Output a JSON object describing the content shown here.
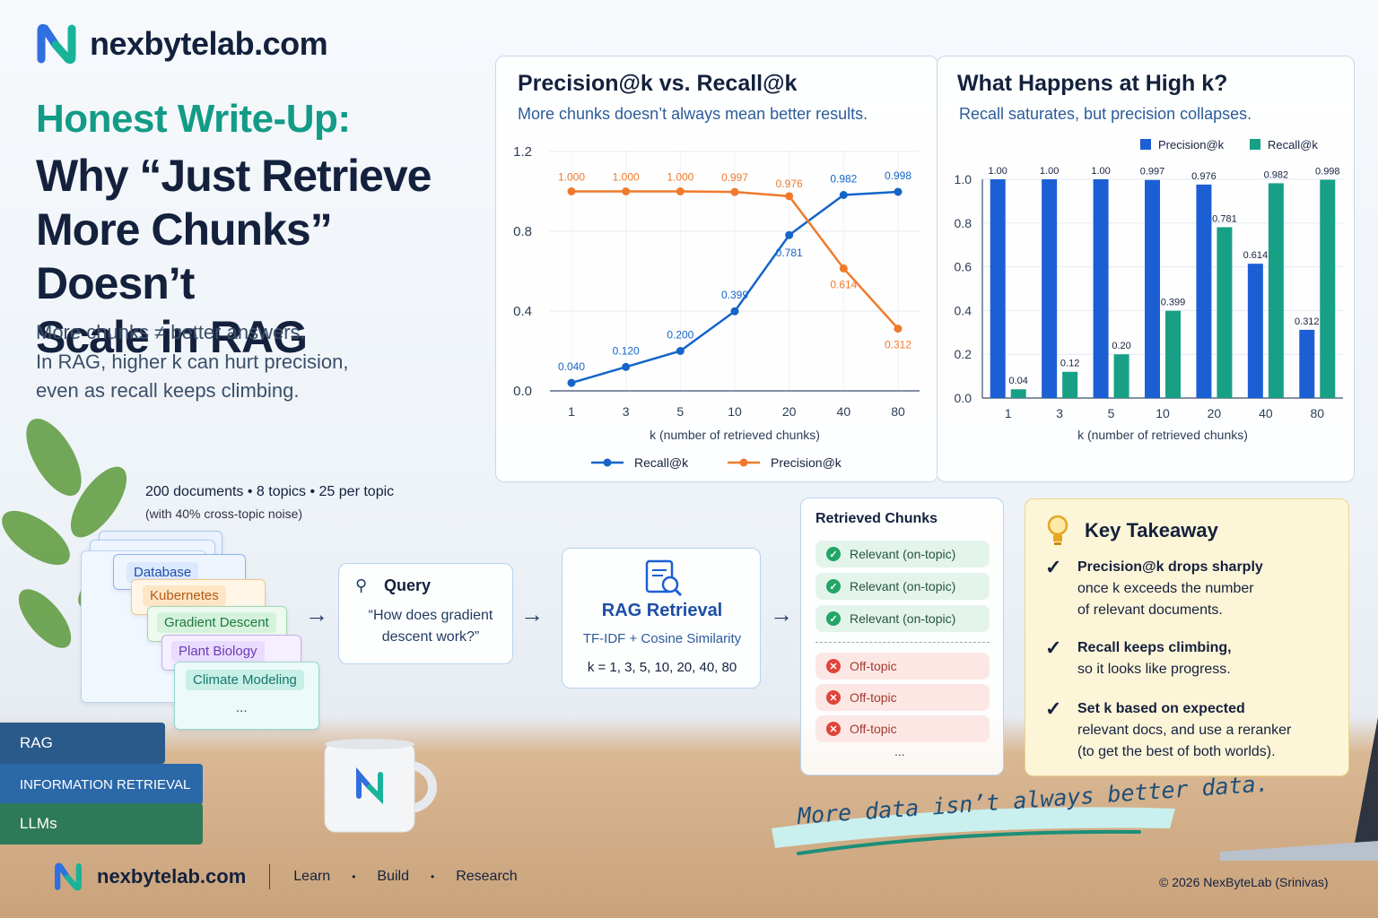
{
  "brand": {
    "name": "nexbytelab.com"
  },
  "headline": {
    "green": "Honest Write-Up:",
    "lines": [
      "Why “Just Retrieve",
      "More Chunks” Doesn’t",
      "Scale in RAG"
    ]
  },
  "subtitle": [
    "More chunks ≠ better answers.",
    "In RAG, higher k can hurt precision,",
    "even as recall keeps climbing."
  ],
  "colors": {
    "recall": "#1565c8",
    "precision": "#f07a2b",
    "bar_precision": "#1c5fd4",
    "bar_recall": "#17a086",
    "navy": "#14213d",
    "teal": "#139b86"
  },
  "chart_data": [
    {
      "type": "line",
      "title": "Precision@k vs. Recall@k",
      "subtitle": "More chunks doesn’t always mean better results.",
      "xlabel": "k (number of retrieved chunks)",
      "ylabel": "",
      "categories": [
        "1",
        "3",
        "5",
        "10",
        "20",
        "40",
        "80"
      ],
      "ylim": [
        0,
        1.2
      ],
      "yticks": [
        "0.0",
        "0.4",
        "0.8",
        "1.2"
      ],
      "grid": true,
      "legend": "bottom",
      "series": [
        {
          "name": "Recall@k",
          "values": [
            0.04,
            0.12,
            0.2,
            0.399,
            0.781,
            0.982,
            0.998
          ],
          "labels": [
            "0.040",
            "0.120",
            "0.200",
            "0.399",
            "0.781",
            "0.982",
            "0.998"
          ]
        },
        {
          "name": "Precision@k",
          "values": [
            1.0,
            1.0,
            1.0,
            0.997,
            0.976,
            0.614,
            0.312
          ],
          "labels": [
            "1.000",
            "1.000",
            "1.000",
            "0.997",
            "0.976",
            "0.614",
            "0.312"
          ]
        }
      ]
    },
    {
      "type": "bar",
      "title": "What Happens at High k?",
      "subtitle": "Recall saturates, but precision collapses.",
      "xlabel": "k (number of retrieved chunks)",
      "ylabel": "",
      "categories": [
        "1",
        "3",
        "5",
        "10",
        "20",
        "40",
        "80"
      ],
      "ylim": [
        0,
        1.0
      ],
      "yticks": [
        "0.0",
        "0.2",
        "0.4",
        "0.6",
        "0.8",
        "1.0"
      ],
      "legend": "top-right",
      "series": [
        {
          "name": "Precision@k",
          "values": [
            1.0,
            1.0,
            1.0,
            0.997,
            0.976,
            0.614,
            0.312
          ],
          "labels": [
            "1.00",
            "1.00",
            "1.00",
            "0.997",
            "0.976",
            "0.614",
            "0.312"
          ]
        },
        {
          "name": "Recall@k",
          "values": [
            0.04,
            0.12,
            0.2,
            0.399,
            0.781,
            0.982,
            0.998
          ],
          "labels": [
            "0.04",
            "0.12",
            "0.20",
            "0.399",
            "0.781",
            "0.982",
            "0.998"
          ]
        }
      ]
    }
  ],
  "dataset": {
    "summary": "200 documents  •  8 topics  •  25 per topic",
    "note": "(with 40% cross-topic noise)",
    "docs": [
      "Database",
      "Kubernetes",
      "Gradient Descent",
      "Plant Biology",
      "Climate Modeling",
      "..."
    ]
  },
  "query": {
    "label": "Query",
    "text": "“How does gradient descent work?”"
  },
  "retrieval": {
    "title": "RAG Retrieval",
    "method": "TF-IDF + Cosine Similarity",
    "ks": "k = 1, 3, 5, 10, 20, 40, 80"
  },
  "chunks": {
    "title": "Retrieved Chunks",
    "relevant": [
      "Relevant (on-topic)",
      "Relevant (on-topic)",
      "Relevant (on-topic)"
    ],
    "off": [
      "Off-topic",
      "Off-topic",
      "Off-topic"
    ],
    "more": "..."
  },
  "takeaway": {
    "title": "Key Takeaway",
    "items": [
      {
        "lines": [
          "Precision@k drops sharply",
          "once k exceeds the number",
          "of relevant documents."
        ]
      },
      {
        "lines": [
          "Recall keeps climbing,",
          "so it looks like progress."
        ]
      },
      {
        "lines": [
          "Set k based on expected",
          "relevant docs, and use a reranker",
          "(to get the best of both worlds)."
        ]
      }
    ]
  },
  "books": [
    "RAG",
    "INFORMATION RETRIEVAL",
    "LLMs"
  ],
  "slogan": "More data isn’t always better data.",
  "footer": {
    "brand": "nexbytelab.com",
    "links": [
      "Learn",
      "Build",
      "Research"
    ],
    "copyright": "© 2026 NexByteLab (Srinivas)"
  }
}
